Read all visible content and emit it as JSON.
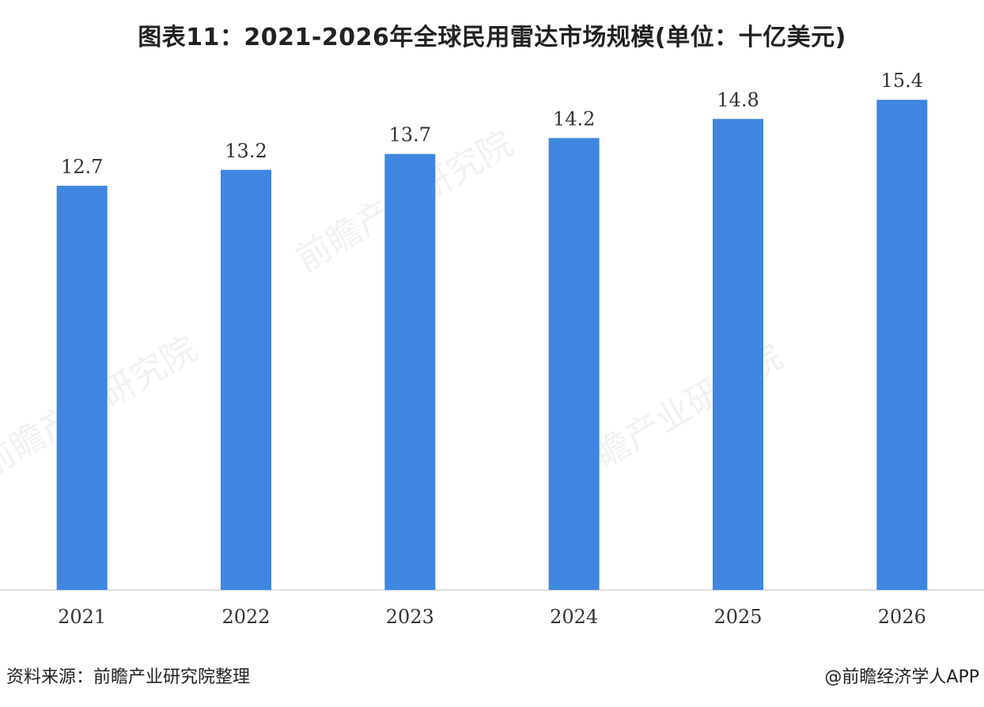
{
  "chart_data": {
    "type": "bar",
    "title": "图表11：2021-2026年全球民用雷达市场规模(单位：十亿美元)",
    "categories": [
      "2021",
      "2022",
      "2023",
      "2024",
      "2025",
      "2026"
    ],
    "values": [
      12.7,
      13.2,
      13.7,
      14.2,
      14.8,
      15.4
    ],
    "data_labels": [
      "12.7",
      "13.2",
      "13.7",
      "14.2",
      "14.8",
      "15.4"
    ],
    "xlabel": "",
    "ylabel": "",
    "ylim": [
      0,
      16.3
    ],
    "grid": false,
    "legend": "none",
    "bar_color": "#3f86e0"
  },
  "footer": {
    "source": "资料来源：前瞻产业研究院整理",
    "credit": "@前瞻经济学人APP"
  },
  "watermark_text": "前瞻产业研究院"
}
